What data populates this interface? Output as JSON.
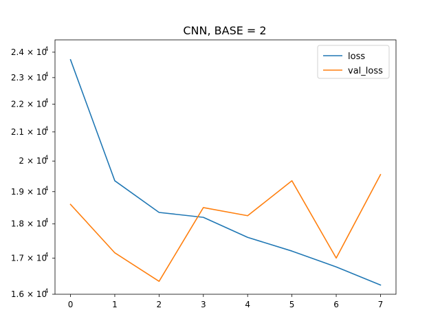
{
  "chart_data": {
    "type": "line",
    "title": "CNN, BASE = 2",
    "xlabel": "",
    "ylabel": "",
    "y_scale": "log",
    "xlim": [
      -0.35,
      7.35
    ],
    "ylim": [
      16000,
      24500
    ],
    "x": [
      0,
      1,
      2,
      3,
      4,
      5,
      6,
      7
    ],
    "x_ticks": [
      "0",
      "1",
      "2",
      "3",
      "4",
      "5",
      "6",
      "7"
    ],
    "y_ticks": [
      {
        "value": 16000,
        "mantissa": "1.6",
        "base": "10",
        "exp": "4"
      },
      {
        "value": 17000,
        "mantissa": "1.7",
        "base": "10",
        "exp": "4"
      },
      {
        "value": 18000,
        "mantissa": "1.8",
        "base": "10",
        "exp": "4"
      },
      {
        "value": 19000,
        "mantissa": "1.9",
        "base": "10",
        "exp": "4"
      },
      {
        "value": 20000,
        "mantissa": "2",
        "base": "10",
        "exp": "4"
      },
      {
        "value": 21000,
        "mantissa": "2.1",
        "base": "10",
        "exp": "4"
      },
      {
        "value": 22000,
        "mantissa": "2.2",
        "base": "10",
        "exp": "4"
      },
      {
        "value": 23000,
        "mantissa": "2.3",
        "base": "10",
        "exp": "4"
      },
      {
        "value": 24000,
        "mantissa": "2.4",
        "base": "10",
        "exp": "4"
      }
    ],
    "series": [
      {
        "name": "loss",
        "color": "#1f77b4",
        "values": [
          23700,
          19350,
          18350,
          18200,
          17600,
          17200,
          16750,
          16250
        ]
      },
      {
        "name": "val_loss",
        "color": "#ff7f0e",
        "values": [
          18600,
          17150,
          16350,
          18500,
          18250,
          19350,
          17000,
          19550
        ]
      }
    ],
    "legend_position": "top-right",
    "grid": false
  }
}
